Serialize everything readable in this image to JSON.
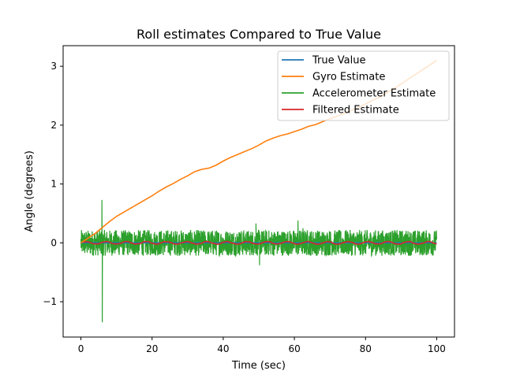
{
  "chart_data": {
    "type": "line",
    "title": "Roll estimates Compared to True Value",
    "xlabel": "Time (sec)",
    "ylabel": "Angle (degrees)",
    "xlim": [
      -5,
      105
    ],
    "ylim": [
      -1.6,
      3.35
    ],
    "x_ticks": [
      0,
      20,
      40,
      60,
      80,
      100
    ],
    "x_tick_labels": [
      "0",
      "20",
      "40",
      "60",
      "80",
      "100"
    ],
    "y_ticks": [
      -1,
      0,
      1,
      2,
      3
    ],
    "y_tick_labels": [
      "−1",
      "0",
      "1",
      "2",
      "3"
    ],
    "grid": false,
    "legend_position": "top-right",
    "series": [
      {
        "name": "True Value",
        "color": "#1f77b4",
        "x": [
          0,
          100
        ],
        "y": [
          0,
          0
        ]
      },
      {
        "name": "Gyro Estimate",
        "color": "#ff7f0e",
        "x": [
          0,
          2,
          4,
          6,
          8,
          10,
          12,
          14,
          16,
          18,
          20,
          22,
          24,
          26,
          28,
          30,
          32,
          34,
          36,
          38,
          40,
          42,
          44,
          46,
          48,
          50,
          52,
          54,
          56,
          58,
          60,
          62,
          64,
          66,
          68,
          70,
          72,
          74,
          76,
          78,
          80,
          82,
          84,
          86,
          88,
          90,
          92,
          94,
          96,
          98,
          100
        ],
        "y": [
          0.0,
          0.08,
          0.16,
          0.26,
          0.36,
          0.45,
          0.52,
          0.59,
          0.66,
          0.73,
          0.8,
          0.88,
          0.95,
          1.01,
          1.08,
          1.14,
          1.21,
          1.25,
          1.27,
          1.32,
          1.39,
          1.45,
          1.5,
          1.55,
          1.6,
          1.66,
          1.73,
          1.78,
          1.82,
          1.85,
          1.89,
          1.93,
          1.98,
          2.01,
          2.06,
          2.11,
          2.15,
          2.2,
          2.25,
          2.3,
          2.36,
          2.42,
          2.48,
          2.55,
          2.62,
          2.7,
          2.78,
          2.86,
          2.94,
          3.02,
          3.1
        ]
      },
      {
        "name": "Accelerometer Estimate",
        "color": "#2ca02c",
        "x": [
          0,
          100
        ],
        "y_range": [
          -0.22,
          0.22
        ],
        "spikes": [
          {
            "x": 5.9,
            "y": 0.73
          },
          {
            "x": 6.0,
            "y": -1.35
          },
          {
            "x": 49.2,
            "y": 0.33
          },
          {
            "x": 50.2,
            "y": -0.38
          },
          {
            "x": 61.0,
            "y": 0.38
          },
          {
            "x": 62.4,
            "y": 0.25
          }
        ]
      },
      {
        "name": "Filtered Estimate",
        "color": "#d62728",
        "x": [
          0,
          100
        ],
        "y_range": [
          -0.03,
          0.03
        ]
      }
    ]
  }
}
